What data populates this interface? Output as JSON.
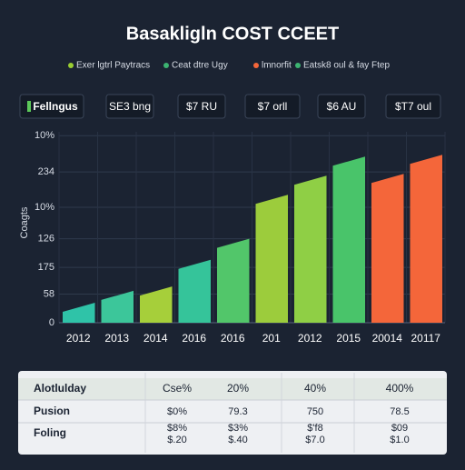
{
  "chart_data": {
    "type": "bar",
    "title": "Basakligln COST CCEET",
    "legend": [
      {
        "name": "Exer lgtrl Paytracs",
        "color": "#9acd32"
      },
      {
        "name": "Ceat dtre Ugy",
        "color": "#3cb371"
      },
      {
        "name": "lmnorfit",
        "color": "#f4663a"
      },
      {
        "name": "Eatsk8 oul & fay Ftep",
        "color": "#3cb371"
      }
    ],
    "ylabel": "Coagts",
    "categories": [
      "2012",
      "2013",
      "2014",
      "2016",
      "2016",
      "201",
      "2012",
      "2015",
      "20014",
      "20117"
    ],
    "values": [
      10.5,
      16.7,
      19,
      33,
      44,
      67,
      77,
      87,
      78,
      88
    ],
    "colors": [
      "#2fc3a8",
      "#3cc69a",
      "#a6cf3a",
      "#35c49a",
      "#52c66a",
      "#9ccc3c",
      "#8fcf45",
      "#49c46a",
      "#f4663a",
      "#f4663a"
    ],
    "ylim": [
      0,
      100
    ],
    "yticks": [
      {
        "value": 98,
        "label": "10%"
      },
      {
        "value": 79,
        "label": "234"
      },
      {
        "value": 60.5,
        "label": "10%"
      },
      {
        "value": 44,
        "label": "126"
      },
      {
        "value": 29,
        "label": "175"
      },
      {
        "value": 15,
        "label": "58"
      },
      0
    ],
    "grid": true
  },
  "buttons": [
    "Fellngus",
    "SE3 bng",
    "$7 RU",
    "$7 orll",
    "$6 AU",
    "$T7 oul"
  ],
  "table": {
    "header": [
      "Alotlulday",
      "Cse%",
      "20%",
      "40%",
      "400%"
    ],
    "rows": [
      [
        [
          "Pusion"
        ],
        [
          "$0%"
        ],
        [
          "79.3"
        ],
        [
          "750"
        ],
        [
          "78.5"
        ]
      ],
      [
        [
          "Foling"
        ],
        [
          "$8%",
          "$.20"
        ],
        [
          "$3%",
          "$.40"
        ],
        [
          "$'f8",
          "$7.0"
        ],
        [
          "$09",
          "$1.0"
        ]
      ]
    ]
  }
}
